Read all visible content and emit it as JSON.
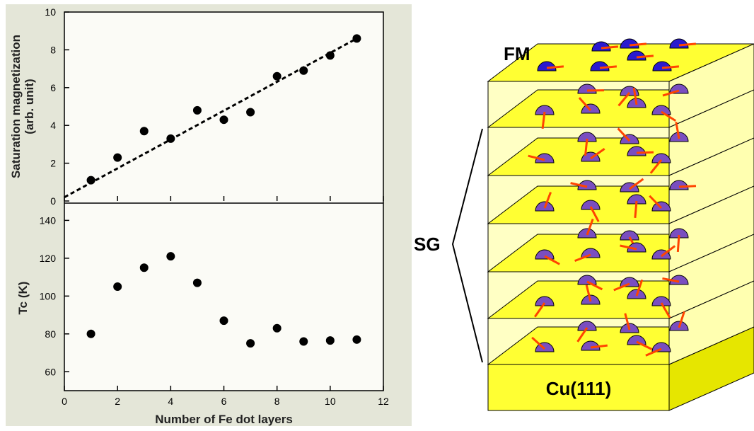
{
  "chart_data": [
    {
      "type": "scatter",
      "ylabel": [
        "Saturation  magnetization",
        "(arb. unit)"
      ],
      "x": [
        1,
        2,
        3,
        4,
        5,
        6,
        7,
        8,
        9,
        10,
        11
      ],
      "series": [
        {
          "color": "#000000",
          "values": [
            1.1,
            2.3,
            3.7,
            3.3,
            4.8,
            4.3,
            4.7,
            6.6,
            6.9,
            7.7,
            8.6
          ]
        }
      ],
      "fit_line": {
        "x": [
          0,
          11
        ],
        "values": [
          0.2,
          8.6
        ]
      },
      "xlim": [
        0,
        12
      ],
      "xticks": [
        0,
        2,
        4,
        6,
        8,
        10,
        12
      ],
      "ylim": [
        0,
        10
      ],
      "yticks": [
        0,
        2,
        4,
        6,
        8,
        10
      ]
    },
    {
      "type": "scatter",
      "ylabel": [
        "Tc (K)"
      ],
      "xlabel": "Number of Fe dot layers",
      "x": [
        1,
        2,
        3,
        4,
        5,
        6,
        7,
        8,
        9,
        10,
        11
      ],
      "series": [
        {
          "color": "#000000",
          "values": [
            80,
            105,
            115,
            121,
            107,
            87,
            75,
            83,
            76,
            76.5,
            77
          ]
        }
      ],
      "xlim": [
        0,
        12
      ],
      "xticks": [
        0,
        2,
        4,
        6,
        8,
        10,
        12
      ],
      "ylim": [
        50,
        148
      ],
      "yticks": [
        60,
        80,
        100,
        120,
        140
      ]
    }
  ],
  "diagram": {
    "labels": {
      "fm": "FM",
      "sg": "SG",
      "substrate": "Cu(111)"
    }
  }
}
